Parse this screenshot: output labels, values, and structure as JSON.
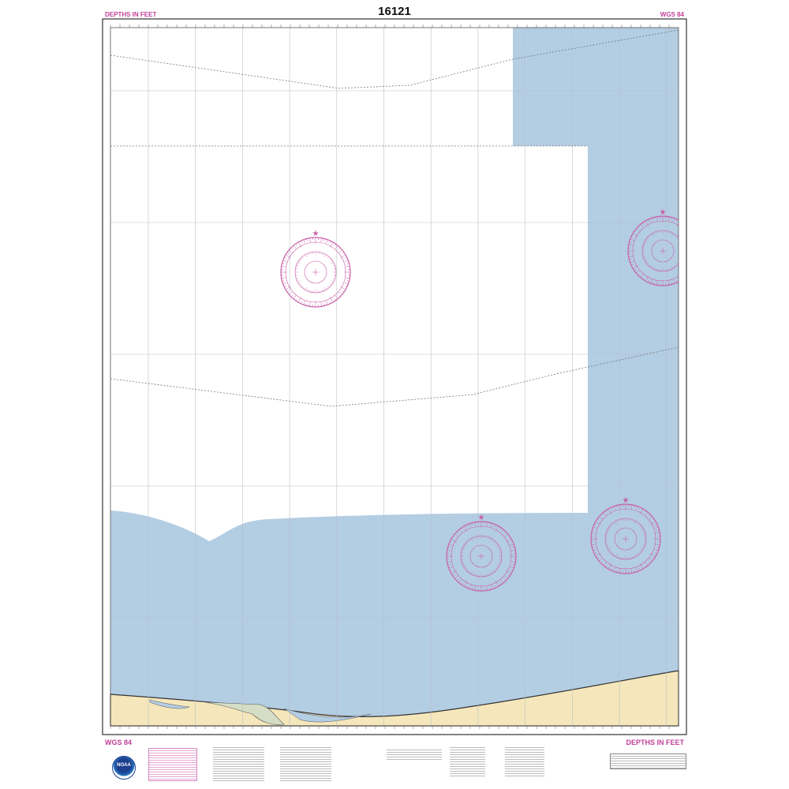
{
  "header": {
    "chart_number": "16121",
    "depth_units_label": "DEPTHS IN FEET",
    "datum_label": "WGS 84"
  },
  "footer": {
    "datum_label": "WGS 84",
    "depth_units_label": "DEPTHS IN FEET",
    "logo_text": "NOAA"
  },
  "colors": {
    "water": "#b3cde3",
    "land": "#f5e7bb",
    "marsh": "#d6ddc6",
    "compass_rose": "#c95fa8",
    "grid": "#b9c0c8"
  },
  "icons": [
    "compass-rose",
    "noaa-logo",
    "star-marker"
  ]
}
